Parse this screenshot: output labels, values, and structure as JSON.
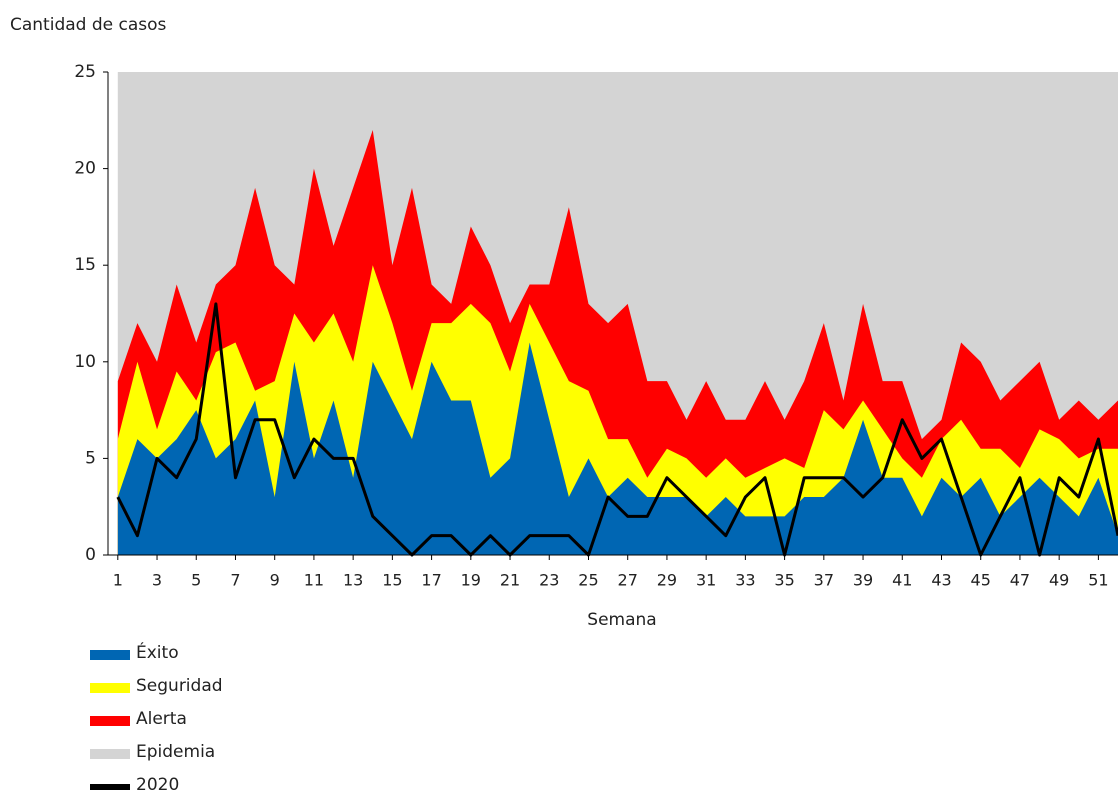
{
  "chart_data": {
    "type": "area",
    "y_label": "Cantidad de casos",
    "x_label": "Semana",
    "x": [
      1,
      2,
      3,
      4,
      5,
      6,
      7,
      8,
      9,
      10,
      11,
      12,
      13,
      14,
      15,
      16,
      17,
      18,
      19,
      20,
      21,
      22,
      23,
      24,
      25,
      26,
      27,
      28,
      29,
      30,
      31,
      32,
      33,
      34,
      35,
      36,
      37,
      38,
      39,
      40,
      41,
      42,
      43,
      44,
      45,
      46,
      47,
      48,
      49,
      50,
      51,
      52
    ],
    "xlim": [
      0.5,
      52
    ],
    "xticks": [
      1,
      3,
      5,
      7,
      9,
      11,
      13,
      15,
      17,
      19,
      21,
      23,
      25,
      27,
      29,
      31,
      33,
      35,
      37,
      39,
      41,
      43,
      45,
      47,
      49,
      51
    ],
    "ylim": [
      0,
      25
    ],
    "yticks": [
      0,
      5,
      10,
      15,
      20,
      25
    ],
    "series": [
      {
        "name": "Éxito",
        "color": "#0066b3",
        "kind": "area",
        "values": [
          3,
          6,
          5,
          6,
          7.5,
          5,
          6,
          8,
          3,
          10,
          5,
          8,
          4,
          10,
          8,
          6,
          10,
          8,
          8,
          4,
          5,
          11,
          7,
          3,
          5,
          3,
          4,
          3,
          3,
          3,
          2,
          3,
          2,
          2,
          2,
          3,
          3,
          4,
          7,
          4,
          4,
          2,
          4,
          3,
          4,
          2,
          3,
          4,
          3,
          2,
          4,
          1
        ]
      },
      {
        "name": "Seguridad",
        "color": "#ffff00",
        "kind": "area",
        "values": [
          6,
          10,
          6.5,
          9.5,
          8,
          10.5,
          11,
          8.5,
          9,
          12.5,
          11,
          12.5,
          10,
          15,
          12,
          8.5,
          12,
          12,
          13,
          12,
          9.5,
          13,
          11,
          9,
          8.5,
          6,
          6,
          4,
          5.5,
          5,
          4,
          5,
          4,
          4.5,
          5,
          4.5,
          7.5,
          6.5,
          8,
          6.5,
          5,
          4,
          6,
          7,
          5.5,
          5.5,
          4.5,
          6.5,
          6,
          5,
          5.5,
          5.5
        ]
      },
      {
        "name": "Alerta",
        "color": "#ff0000",
        "kind": "area",
        "values": [
          9,
          12,
          10,
          14,
          11,
          14,
          15,
          19,
          15,
          14,
          20,
          16,
          19,
          22,
          15,
          19,
          14,
          13,
          17,
          15,
          12,
          14,
          14,
          18,
          13,
          12,
          13,
          9,
          9,
          7,
          9,
          7,
          7,
          9,
          7,
          9,
          12,
          8,
          13,
          9,
          9,
          6,
          7,
          11,
          10,
          8,
          9,
          10,
          7,
          8,
          7,
          8
        ]
      },
      {
        "name": "Epidemia",
        "color": "#d4d4d4",
        "kind": "area",
        "values": [
          25,
          25,
          25,
          25,
          25,
          25,
          25,
          25,
          25,
          25,
          25,
          25,
          25,
          25,
          25,
          25,
          25,
          25,
          25,
          25,
          25,
          25,
          25,
          25,
          25,
          25,
          25,
          25,
          25,
          25,
          25,
          25,
          25,
          25,
          25,
          25,
          25,
          25,
          25,
          25,
          25,
          25,
          25,
          25,
          25,
          25,
          25,
          25,
          25,
          25,
          25,
          25
        ]
      },
      {
        "name": "2020",
        "color": "#000000",
        "kind": "line",
        "values": [
          3,
          1,
          5,
          4,
          6,
          13,
          4,
          7,
          7,
          4,
          6,
          5,
          5,
          2,
          1,
          0,
          1,
          1,
          0,
          1,
          0,
          1,
          1,
          1,
          0,
          3,
          2,
          2,
          4,
          3,
          2,
          1,
          3,
          4,
          0,
          4,
          4,
          4,
          3,
          4,
          7,
          5,
          6,
          3,
          0,
          2,
          4,
          0,
          4,
          3,
          6,
          1
        ]
      }
    ]
  }
}
